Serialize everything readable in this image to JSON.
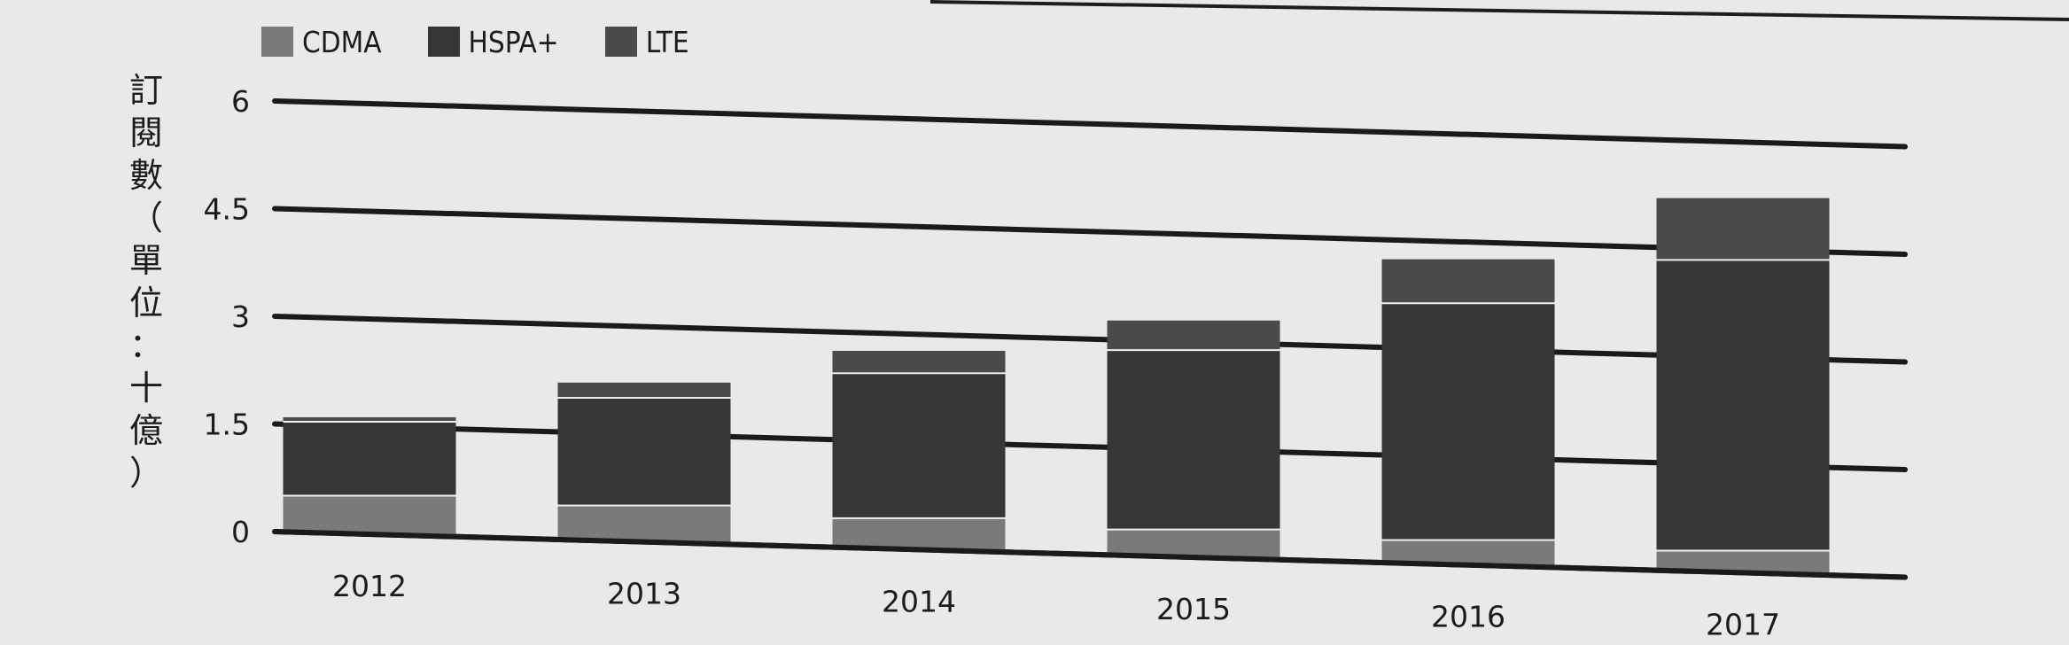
{
  "chart_data": {
    "type": "bar",
    "stacked": true,
    "categories": [
      "2012",
      "2013",
      "2014",
      "2015",
      "2016",
      "2017"
    ],
    "series": [
      {
        "name": "CDMA",
        "color": "#7a7a7a",
        "values": [
          0.55,
          0.52,
          0.45,
          0.4,
          0.36,
          0.32
        ]
      },
      {
        "name": "HSPA+",
        "color": "#363636",
        "values": [
          1.03,
          1.5,
          2.02,
          2.5,
          3.3,
          4.05
        ]
      },
      {
        "name": "LTE",
        "color": "#4a4a4a",
        "values": [
          0.05,
          0.2,
          0.3,
          0.4,
          0.6,
          0.85
        ]
      }
    ],
    "yticks": [
      "0",
      "1.5",
      "3",
      "4.5",
      "6"
    ],
    "ylim": [
      0,
      6
    ],
    "ylabel": "訂閱數（單位：十億）",
    "ylabel_chars": [
      "訂",
      "閱",
      "數",
      "（",
      "單",
      "位",
      "：",
      "十",
      "億",
      "）"
    ],
    "grid": true,
    "legend_position": "top-left"
  }
}
